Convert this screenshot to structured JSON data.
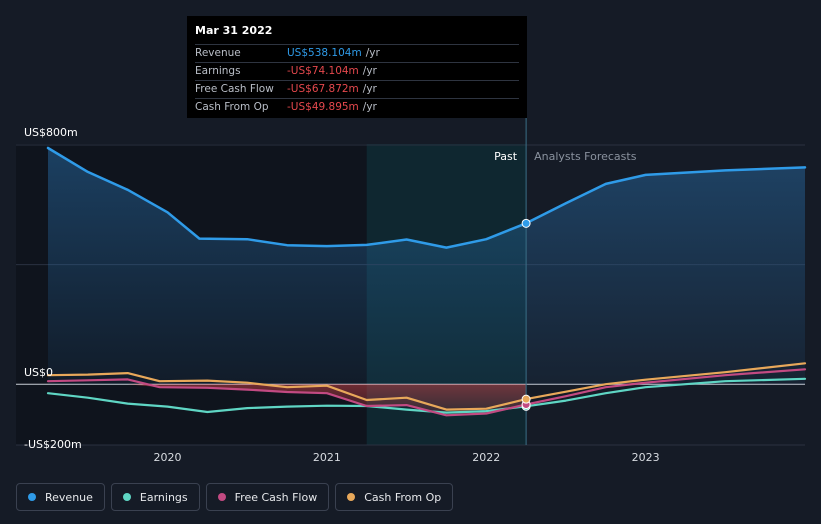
{
  "chart_data": {
    "type": "line",
    "y_tick_labels": [
      {
        "value": 800,
        "label": "US$800m"
      },
      {
        "value": 0,
        "label": "US$0"
      },
      {
        "value": -200,
        "label": "-US$200m"
      }
    ],
    "ylim": [
      -200,
      800
    ],
    "xlim": [
      2019.25,
      2024.0
    ],
    "x_ticks": [
      2020,
      2021,
      2022,
      2023
    ],
    "x_tick_labels": [
      "2020",
      "2021",
      "2022",
      "2023"
    ],
    "grid": true,
    "regions": {
      "past_label": "Past",
      "forecast_label": "Analysts Forecasts",
      "divider_x": 2022.25,
      "highlight_start": 2021.25
    },
    "series": [
      {
        "name": "Revenue",
        "color": "#2f9be8",
        "fill": true,
        "points": [
          [
            2019.25,
            790
          ],
          [
            2019.5,
            710
          ],
          [
            2019.75,
            650
          ],
          [
            2020.0,
            575
          ],
          [
            2020.2,
            487
          ],
          [
            2020.5,
            485
          ],
          [
            2020.75,
            465
          ],
          [
            2021.0,
            462
          ],
          [
            2021.25,
            466
          ],
          [
            2021.5,
            484
          ],
          [
            2021.75,
            457
          ],
          [
            2022.0,
            485
          ],
          [
            2022.25,
            538
          ],
          [
            2022.5,
            605
          ],
          [
            2022.75,
            670
          ],
          [
            2023.0,
            700
          ],
          [
            2023.5,
            715
          ],
          [
            2024.0,
            725
          ]
        ]
      },
      {
        "name": "Earnings",
        "color": "#5fd6c4",
        "points": [
          [
            2019.25,
            -30
          ],
          [
            2019.5,
            -45
          ],
          [
            2019.75,
            -65
          ],
          [
            2020.0,
            -75
          ],
          [
            2020.25,
            -93
          ],
          [
            2020.5,
            -80
          ],
          [
            2020.75,
            -75
          ],
          [
            2021.0,
            -72
          ],
          [
            2021.25,
            -73
          ],
          [
            2021.5,
            -85
          ],
          [
            2021.75,
            -95
          ],
          [
            2022.0,
            -90
          ],
          [
            2022.25,
            -74
          ],
          [
            2022.5,
            -55
          ],
          [
            2022.75,
            -30
          ],
          [
            2023.0,
            -10
          ],
          [
            2023.5,
            10
          ],
          [
            2024.0,
            18
          ]
        ]
      },
      {
        "name": "Free Cash Flow",
        "color": "#c24a82",
        "points": [
          [
            2019.25,
            10
          ],
          [
            2019.5,
            13
          ],
          [
            2019.75,
            16
          ],
          [
            2019.95,
            -10
          ],
          [
            2020.25,
            -12
          ],
          [
            2020.5,
            -18
          ],
          [
            2020.75,
            -26
          ],
          [
            2021.0,
            -30
          ],
          [
            2021.25,
            -73
          ],
          [
            2021.5,
            -70
          ],
          [
            2021.75,
            -104
          ],
          [
            2022.0,
            -98
          ],
          [
            2022.25,
            -68
          ],
          [
            2022.5,
            -40
          ],
          [
            2022.75,
            -10
          ],
          [
            2023.0,
            5
          ],
          [
            2023.5,
            30
          ],
          [
            2024.0,
            50
          ]
        ]
      },
      {
        "name": "Cash From Op",
        "color": "#e8a85a",
        "points": [
          [
            2019.25,
            30
          ],
          [
            2019.5,
            32
          ],
          [
            2019.75,
            37
          ],
          [
            2019.95,
            10
          ],
          [
            2020.25,
            12
          ],
          [
            2020.5,
            5
          ],
          [
            2020.75,
            -10
          ],
          [
            2021.0,
            -5
          ],
          [
            2021.25,
            -53
          ],
          [
            2021.5,
            -45
          ],
          [
            2021.75,
            -85
          ],
          [
            2022.0,
            -82
          ],
          [
            2022.25,
            -50
          ],
          [
            2022.5,
            -25
          ],
          [
            2022.75,
            0
          ],
          [
            2023.0,
            15
          ],
          [
            2023.5,
            40
          ],
          [
            2024.0,
            70
          ]
        ]
      }
    ]
  },
  "tooltip": {
    "date": "Mar 31 2022",
    "rows": [
      {
        "label": "Revenue",
        "value": "US$538.104m",
        "unit": "/yr",
        "color": "#2f9be8"
      },
      {
        "label": "Earnings",
        "value": "-US$74.104m",
        "unit": "/yr",
        "color": "#e5484d"
      },
      {
        "label": "Free Cash Flow",
        "value": "-US$67.872m",
        "unit": "/yr",
        "color": "#e5484d"
      },
      {
        "label": "Cash From Op",
        "value": "-US$49.895m",
        "unit": "/yr",
        "color": "#e5484d"
      }
    ]
  },
  "legend": [
    {
      "label": "Revenue",
      "color": "#2f9be8"
    },
    {
      "label": "Earnings",
      "color": "#5fd6c4"
    },
    {
      "label": "Free Cash Flow",
      "color": "#c24a82"
    },
    {
      "label": "Cash From Op",
      "color": "#e8a85a"
    }
  ]
}
